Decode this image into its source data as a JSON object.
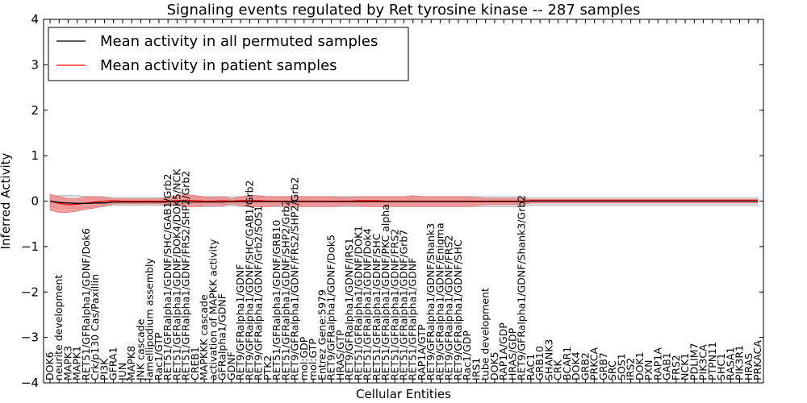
{
  "chart_data": {
    "type": "line",
    "title": "Signaling events regulated by Ret tyrosine kinase -- 287 samples",
    "xlabel": "Cellular Entities",
    "ylabel": "Inferred Activity",
    "ylim": [
      -4,
      4
    ],
    "yticks": [
      4,
      3,
      2,
      1,
      0,
      -1,
      -2,
      -3,
      -4
    ],
    "ytick_labels": [
      "4",
      "3",
      "2",
      "1",
      "0",
      "−1",
      "−2",
      "−3",
      "−4"
    ],
    "legend": {
      "placement": "top-left",
      "entries": [
        {
          "label": "Mean activity in all permuted samples",
          "color": "#000000"
        },
        {
          "label": "Mean activity in patient samples",
          "color": "#ff0000"
        }
      ]
    },
    "categories": [
      "DOK6",
      "neurite development",
      "MAPK3",
      "MAPK1",
      "RET51/GFRalpha1/GDNF/Dok6",
      "Crk/p130 Cas/Paxillin",
      "PI3K",
      "GFRA1",
      "JUN",
      "MAPK8",
      "JNK cascade",
      "lamellipodium assembly",
      "Rac1/GTP",
      "RET51/GFRalpha1/GDNF/SHC/GAB1/Grb2",
      "RET51/GFRalpha1/GDNF/DOK4/DOK5/NCK",
      "RET51/GFRalpha1/GDNF/FRS2/SHP2/Grb2",
      "CREB1",
      "MAPKKK cascade",
      "activation of MAPKK activity",
      "GFRalpha1/GDNF",
      "GDNF",
      "RET9/GFRalpha1/GDNF",
      "RET9/GFRalpha1/GDNF/SHC/GAB1/Grb2",
      "RET9/GFRalpha1/GDNF/Grb2/SOS1",
      "PTK2",
      "RET51/GFRalpha1/GDNF/GRB10",
      "RET51/GFRalpha1/GDNF/SHP2/Grb2",
      "RET9/GFRalpha1/GDNF/FRS2/SHP2/Grb2",
      "mol:GDP",
      "mol:GTP",
      "Entrez Gene:5979",
      "RET9/GFRalpha1/GDNF/Dok5",
      "HRAS/GTP",
      "RET9/GFRalpha1/GDNF/IRS1",
      "RET51/GFRalpha1/GDNF/DOK1",
      "RET51/GFRalpha1/GDNF/Dok4",
      "RET51/GFRalpha1/GDNF/SHC",
      "RET51/GFRalpha1/GDNF/PKC alpha",
      "RET51/GFRalpha1/GDNF/FRS2",
      "RET51/GFRalpha1/GDNF/Grb7",
      "RET51/GFRalpha1/GDNF",
      "RAP1A/GTP",
      "RET9/GFRalpha1/GDNF/Shank3",
      "RET9/GFRalpha1/GDNF/Enigma",
      "RET9/GFRalpha1/GDNF/FRS2",
      "RET9/GFRalpha1/GDNF/SHC",
      "Rac1/GDP",
      "IRS1",
      "tube development",
      "DOK5",
      "RAP1A/GDP",
      "HRAS/GDP",
      "RET9/GFRalpha1/GDNF/Shank3/Grb2",
      "RAC1",
      "GRB10",
      "SHANK3",
      "CRK",
      "BCAR1",
      "DOK4",
      "GRB2",
      "PRKCA",
      "GRB7",
      "SRC",
      "SOS1",
      "IRS2",
      "DOK1",
      "PXN",
      "RAP1A",
      "GAB1",
      "FRS2",
      "NCK1",
      "PDLIM7",
      "PIK3CA",
      "PTPN11",
      "SHC1",
      "RASA1",
      "PIK3R1",
      "HRAS",
      "PRKACA"
    ],
    "series": [
      {
        "name": "Mean activity in all permuted samples",
        "color": "#000000",
        "values": [
          0.0,
          -0.03,
          -0.04,
          -0.05,
          -0.05,
          -0.04,
          -0.04,
          -0.02,
          -0.02,
          -0.02,
          -0.02,
          -0.02,
          -0.02,
          -0.02,
          -0.01,
          -0.02,
          -0.02,
          -0.02,
          -0.02,
          -0.02,
          -0.01,
          -0.01,
          -0.01,
          -0.01,
          -0.01,
          -0.01,
          -0.01,
          -0.01,
          -0.01,
          -0.01,
          -0.01,
          -0.01,
          -0.01,
          -0.01,
          -0.01,
          -0.01,
          -0.01,
          -0.01,
          -0.01,
          -0.01,
          -0.01,
          -0.01,
          -0.01,
          -0.01,
          -0.01,
          -0.01,
          -0.01,
          -0.01,
          -0.01,
          -0.01,
          -0.01,
          -0.01,
          -0.01,
          0.0,
          0.0,
          0.0,
          0.0,
          0.0,
          0.0,
          0.0,
          0.0,
          0.0,
          0.0,
          0.0,
          0.0,
          0.0,
          0.0,
          0.0,
          0.0,
          0.0,
          0.0,
          0.0,
          0.0,
          0.0,
          0.0,
          0.0,
          0.0,
          0.0,
          0.0
        ],
        "band_upper": [
          0.1,
          0.12,
          0.12,
          0.12,
          0.1,
          0.1,
          0.1,
          0.08,
          0.08,
          0.08,
          0.08,
          0.08,
          0.08,
          0.08,
          0.1,
          0.1,
          0.1,
          0.1,
          0.1,
          0.1,
          0.1,
          0.1,
          0.1,
          0.1,
          0.1,
          0.1,
          0.1,
          0.1,
          0.1,
          0.1,
          0.1,
          0.1,
          0.1,
          0.1,
          0.1,
          0.1,
          0.1,
          0.1,
          0.1,
          0.1,
          0.1,
          0.1,
          0.1,
          0.1,
          0.1,
          0.1,
          0.1,
          0.1,
          0.1,
          0.1,
          0.1,
          0.1,
          0.1,
          0.08,
          0.08,
          0.08,
          0.08,
          0.08,
          0.08,
          0.08,
          0.08,
          0.08,
          0.08,
          0.08,
          0.08,
          0.08,
          0.08,
          0.08,
          0.08,
          0.08,
          0.08,
          0.08,
          0.08,
          0.08,
          0.08,
          0.08,
          0.08,
          0.08,
          0.08
        ],
        "band_lower": [
          -0.12,
          -0.15,
          -0.16,
          -0.16,
          -0.14,
          -0.13,
          -0.12,
          -0.1,
          -0.1,
          -0.1,
          -0.1,
          -0.1,
          -0.1,
          -0.1,
          -0.1,
          -0.12,
          -0.12,
          -0.12,
          -0.12,
          -0.12,
          -0.1,
          -0.12,
          -0.12,
          -0.12,
          -0.12,
          -0.12,
          -0.12,
          -0.12,
          -0.12,
          -0.12,
          -0.12,
          -0.12,
          -0.12,
          -0.12,
          -0.12,
          -0.12,
          -0.12,
          -0.12,
          -0.12,
          -0.12,
          -0.12,
          -0.12,
          -0.12,
          -0.12,
          -0.12,
          -0.12,
          -0.12,
          -0.12,
          -0.12,
          -0.12,
          -0.12,
          -0.12,
          -0.12,
          -0.1,
          -0.1,
          -0.1,
          -0.1,
          -0.1,
          -0.1,
          -0.1,
          -0.1,
          -0.1,
          -0.1,
          -0.1,
          -0.1,
          -0.1,
          -0.1,
          -0.1,
          -0.1,
          -0.1,
          -0.1,
          -0.1,
          -0.1,
          -0.1,
          -0.1,
          -0.1,
          -0.1,
          -0.1,
          -0.1
        ]
      },
      {
        "name": "Mean activity in patient samples",
        "color": "#ff0000",
        "values": [
          0.0,
          -0.05,
          -0.08,
          -0.07,
          -0.04,
          -0.02,
          0.0,
          0.01,
          0.0,
          0.0,
          0.0,
          0.0,
          0.0,
          0.0,
          0.01,
          0.02,
          0.01,
          0.0,
          0.0,
          0.01,
          0.0,
          0.01,
          0.01,
          0.01,
          0.0,
          0.0,
          0.0,
          0.0,
          0.0,
          0.0,
          0.0,
          0.0,
          0.0,
          0.0,
          0.01,
          0.01,
          0.01,
          0.0,
          0.0,
          0.0,
          0.0,
          0.0,
          0.0,
          0.0,
          0.0,
          0.0,
          0.0,
          0.0,
          0.0,
          0.0,
          0.0,
          0.0,
          0.0,
          0.01,
          0.01,
          0.01,
          0.01,
          0.01,
          0.01,
          0.01,
          0.01,
          0.01,
          0.01,
          0.01,
          0.01,
          0.01,
          0.01,
          0.01,
          0.01,
          0.01,
          0.01,
          0.01,
          0.01,
          0.01,
          0.01,
          0.01,
          0.01,
          0.01,
          0.01
        ],
        "band_upper": [
          0.15,
          0.1,
          0.05,
          0.05,
          0.1,
          0.1,
          0.08,
          0.05,
          0.05,
          0.05,
          0.05,
          0.05,
          0.05,
          0.08,
          0.12,
          0.15,
          0.12,
          0.1,
          0.08,
          0.1,
          0.05,
          0.1,
          0.12,
          0.12,
          0.1,
          0.1,
          0.1,
          0.1,
          0.1,
          0.1,
          0.1,
          0.1,
          0.08,
          0.08,
          0.1,
          0.1,
          0.1,
          0.1,
          0.1,
          0.1,
          0.12,
          0.1,
          0.1,
          0.1,
          0.1,
          0.1,
          0.1,
          0.08,
          0.06,
          0.06,
          0.06,
          0.06,
          0.06,
          0.04,
          0.04,
          0.04,
          0.04,
          0.04,
          0.04,
          0.04,
          0.04,
          0.04,
          0.04,
          0.04,
          0.04,
          0.04,
          0.04,
          0.04,
          0.04,
          0.04,
          0.04,
          0.04,
          0.04,
          0.04,
          0.04,
          0.04,
          0.04,
          0.04,
          0.04
        ],
        "band_lower": [
          -0.2,
          -0.25,
          -0.25,
          -0.22,
          -0.18,
          -0.15,
          -0.1,
          -0.06,
          -0.06,
          -0.06,
          -0.06,
          -0.06,
          -0.06,
          -0.08,
          -0.1,
          -0.12,
          -0.12,
          -0.1,
          -0.1,
          -0.1,
          -0.06,
          -0.1,
          -0.12,
          -0.12,
          -0.12,
          -0.1,
          -0.12,
          -0.12,
          -0.12,
          -0.12,
          -0.12,
          -0.12,
          -0.1,
          -0.1,
          -0.1,
          -0.12,
          -0.12,
          -0.12,
          -0.12,
          -0.12,
          -0.12,
          -0.12,
          -0.12,
          -0.12,
          -0.12,
          -0.12,
          -0.12,
          -0.1,
          -0.08,
          -0.08,
          -0.08,
          -0.08,
          -0.08,
          -0.04,
          -0.04,
          -0.04,
          -0.04,
          -0.04,
          -0.04,
          -0.04,
          -0.04,
          -0.04,
          -0.04,
          -0.04,
          -0.04,
          -0.04,
          -0.04,
          -0.04,
          -0.04,
          -0.04,
          -0.04,
          -0.04,
          -0.04,
          -0.04,
          -0.04,
          -0.04,
          -0.04,
          -0.04,
          -0.04
        ]
      }
    ]
  }
}
